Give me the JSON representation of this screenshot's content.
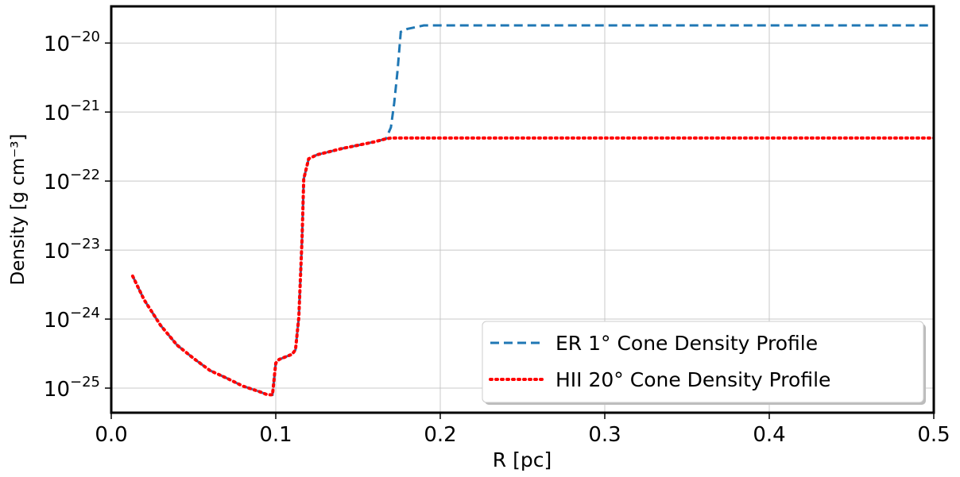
{
  "chart_data": {
    "type": "line",
    "xlabel": "R [pc]",
    "ylabel": "Density [g cm⁻³]",
    "yscale": "log",
    "grid": true,
    "legend": "lower right",
    "x": [
      0.013,
      0.02,
      0.03,
      0.04,
      0.05,
      0.06,
      0.07,
      0.08,
      0.09,
      0.095,
      0.098,
      0.1,
      0.102,
      0.11,
      0.112,
      0.114,
      0.116,
      0.117,
      0.12,
      0.125,
      0.14,
      0.16,
      0.167,
      0.17,
      0.172,
      0.174,
      0.176,
      0.18,
      0.19,
      0.3,
      0.5
    ],
    "series": [
      {
        "name": "ER 1° Cone Density Profile",
        "color": "#1f77b4",
        "style": "dashed",
        "values": [
          4.2e-24,
          1.9e-24,
          8.1e-25,
          4.2e-25,
          2.7e-25,
          1.8e-25,
          1.4e-25,
          1.07e-25,
          8.9e-26,
          8e-26,
          8e-26,
          2.3e-25,
          2.6e-25,
          3.1e-25,
          3.6e-25,
          1.05e-24,
          1.5e-23,
          1.07e-22,
          2.1e-22,
          2.4e-22,
          2.95e-22,
          3.7e-22,
          4.1e-22,
          6e-22,
          1.35e-21,
          3.9e-21,
          1.45e-20,
          1.6e-20,
          1.8e-20,
          1.8e-20,
          1.8e-20
        ]
      },
      {
        "name": "HII 20° Cone Density Profile",
        "color": "#ff0000",
        "style": "dotted",
        "values": [
          4.2e-24,
          1.9e-24,
          8.1e-25,
          4.2e-25,
          2.7e-25,
          1.8e-25,
          1.4e-25,
          1.07e-25,
          8.9e-26,
          8e-26,
          8e-26,
          2.3e-25,
          2.6e-25,
          3.1e-25,
          3.6e-25,
          1.05e-24,
          1.5e-23,
          1.07e-22,
          2.1e-22,
          2.4e-22,
          2.95e-22,
          3.7e-22,
          4.1e-22,
          4.2e-22,
          4.2e-22,
          4.2e-22,
          4.2e-22,
          4.2e-22,
          4.2e-22,
          4.2e-22,
          4.2e-22
        ]
      }
    ],
    "xlim": [
      0,
      0.5
    ],
    "xticks": [
      {
        "value": 0,
        "label": "0.0"
      },
      0.1,
      0.2,
      0.3,
      0.4,
      0.5
    ],
    "ylim": [
      4.4e-26,
      3.4e-20
    ],
    "yticks": [
      {
        "value": 1e-25,
        "label": "10−25"
      },
      {
        "value": 1e-24,
        "label": "10−24"
      },
      {
        "value": 1e-23,
        "label": "10−23"
      },
      {
        "value": 1e-22,
        "label": "10−22"
      },
      {
        "value": 1e-21,
        "label": "10−21"
      },
      {
        "value": 1e-20,
        "label": "10−20"
      }
    ]
  }
}
